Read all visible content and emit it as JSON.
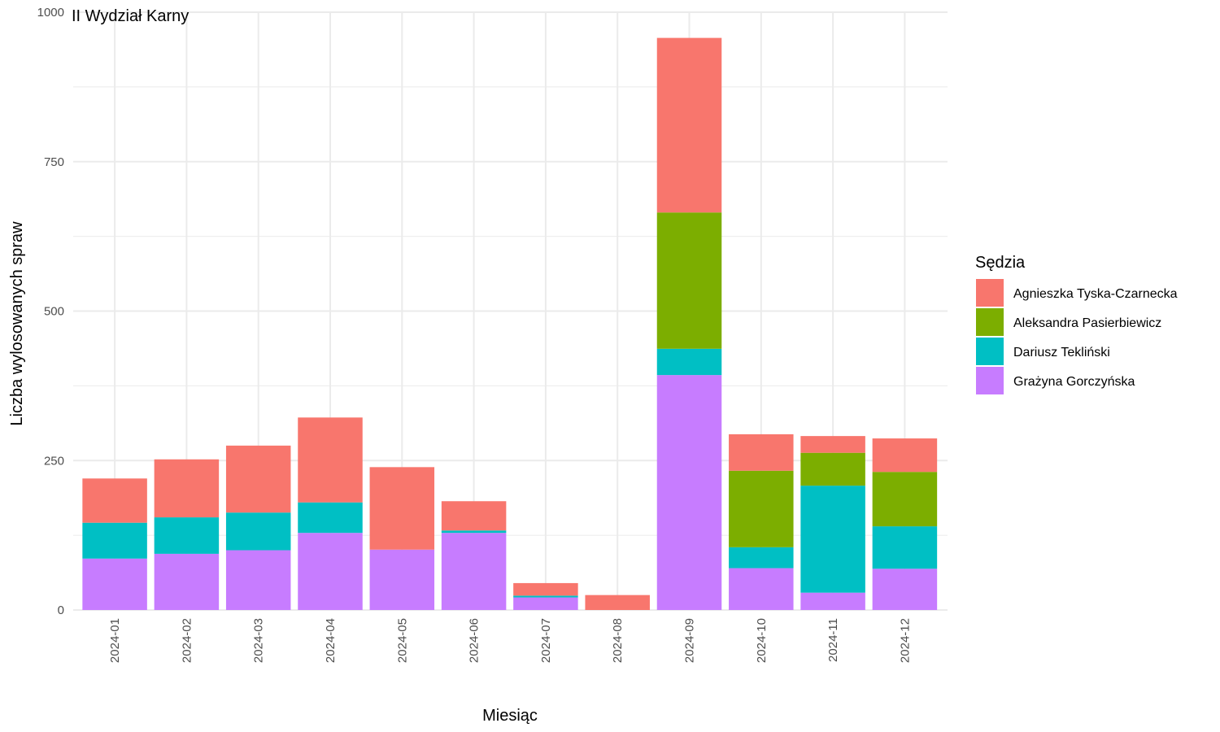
{
  "chart_data": {
    "type": "bar",
    "stacked": true,
    "title": "II Wydział Karny",
    "xlabel": "Miesiąc",
    "ylabel": "Liczba wylosowanych spraw",
    "ylim": [
      0,
      1000
    ],
    "yticks": [
      "0",
      "250",
      "500",
      "750",
      "1000"
    ],
    "grid": true,
    "legend_position": "right",
    "legend_title": "Sędzia",
    "categories": [
      "2024-01",
      "2024-02",
      "2024-03",
      "2024-04",
      "2024-05",
      "2024-06",
      "2024-07",
      "2024-08",
      "2024-09",
      "2024-10",
      "2024-11",
      "2024-12"
    ],
    "series": [
      {
        "name": "Agnieszka Tyska-Czarnecka",
        "color": "#F8766D",
        "values": [
          74,
          97,
          112,
          142,
          138,
          49,
          21,
          25,
          292,
          61,
          28,
          56
        ]
      },
      {
        "name": "Aleksandra Pasierbiewicz",
        "color": "#7CAE00",
        "values": [
          0,
          0,
          0,
          0,
          0,
          0,
          0,
          0,
          228,
          128,
          55,
          91
        ]
      },
      {
        "name": "Dariusz Tekliński",
        "color": "#00BFC4",
        "values": [
          60,
          61,
          63,
          51,
          0,
          4,
          3,
          0,
          44,
          35,
          179,
          71
        ]
      },
      {
        "name": "Grażyna Gorczyńska",
        "color": "#C77CFF",
        "values": [
          86,
          94,
          100,
          129,
          101,
          129,
          21,
          0,
          393,
          70,
          29,
          69
        ]
      }
    ]
  }
}
